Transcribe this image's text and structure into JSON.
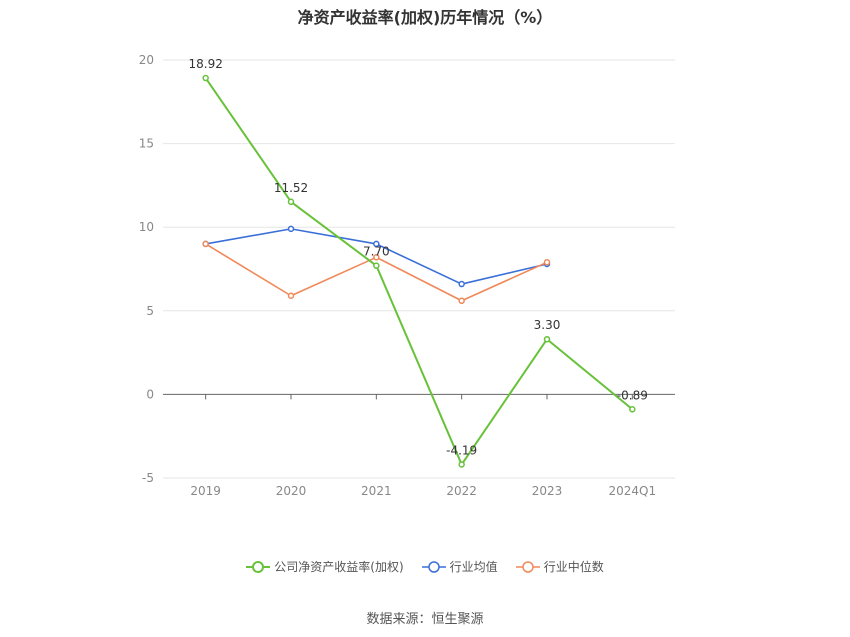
{
  "chart_data": {
    "type": "line",
    "title": "净资产收益率(加权)历年情况（%）",
    "categories": [
      "2019",
      "2020",
      "2021",
      "2022",
      "2023",
      "2024Q1"
    ],
    "ylim": [
      -5,
      20
    ],
    "yticks": [
      -5,
      0,
      5,
      10,
      15,
      20
    ],
    "grid": true,
    "legend_position": "bottom",
    "series": [
      {
        "name": "公司净资产收益率(加权)",
        "color": "#67c23a",
        "values": [
          18.92,
          11.52,
          7.7,
          -4.19,
          3.3,
          -0.89
        ],
        "labels": [
          "18.92",
          "11.52",
          "7.70",
          "-4.19",
          "3.30",
          "-0.89"
        ]
      },
      {
        "name": "行业均值",
        "color": "#3a6fd8",
        "values": [
          9.0,
          9.9,
          9.0,
          6.6,
          7.8,
          null
        ]
      },
      {
        "name": "行业中位数",
        "color": "#f0895a",
        "values": [
          9.0,
          5.9,
          8.2,
          5.6,
          7.9,
          null
        ]
      }
    ]
  },
  "source": "数据来源：恒生聚源"
}
